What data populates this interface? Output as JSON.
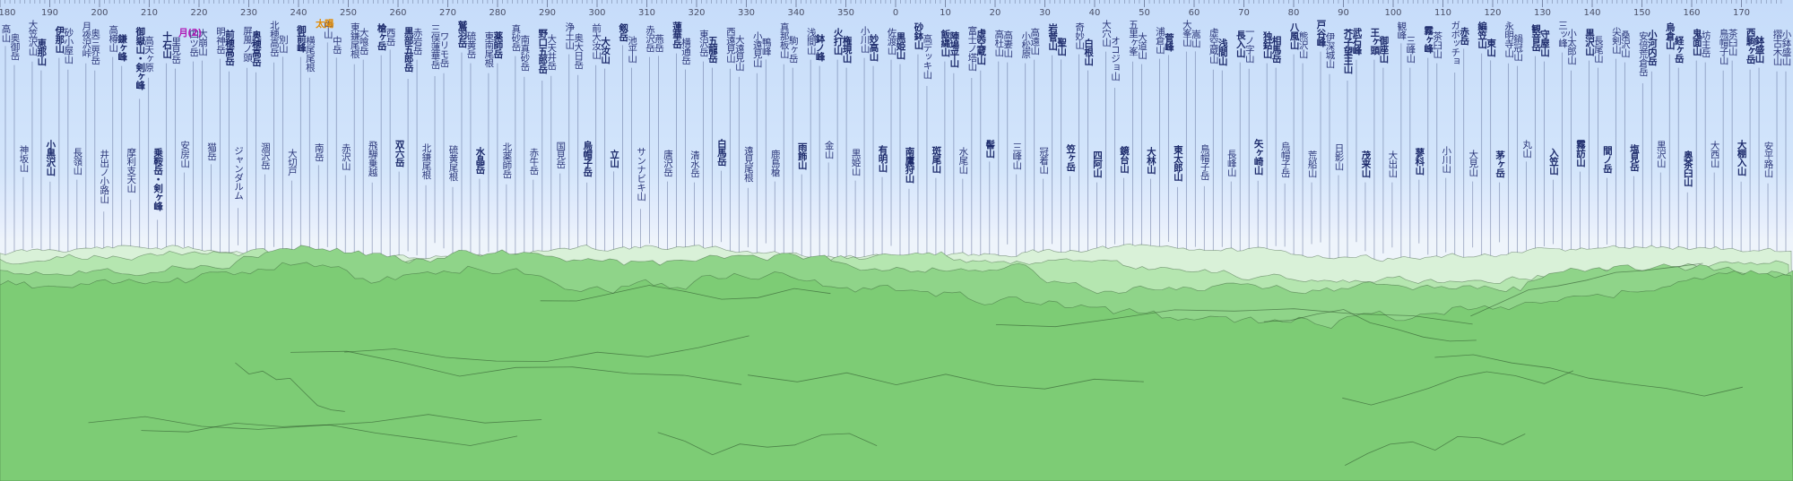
{
  "scale": {
    "start_deg": 180,
    "end_deg": 176,
    "ticks": [
      {
        "a": 180,
        "label": "180"
      },
      {
        "a": 190,
        "label": "190"
      },
      {
        "a": 200,
        "label": "200"
      },
      {
        "a": 210,
        "label": "210"
      },
      {
        "a": 220,
        "label": "220"
      },
      {
        "a": 230,
        "label": "230"
      },
      {
        "a": 240,
        "label": "240"
      },
      {
        "a": 250,
        "label": "250"
      },
      {
        "a": 260,
        "label": "260"
      },
      {
        "a": 270,
        "label": "270"
      },
      {
        "a": 280,
        "label": "280"
      },
      {
        "a": 290,
        "label": "290"
      },
      {
        "a": 300,
        "label": "300"
      },
      {
        "a": 310,
        "label": "310"
      },
      {
        "a": 320,
        "label": "320"
      },
      {
        "a": 330,
        "label": "330"
      },
      {
        "a": 340,
        "label": "340"
      },
      {
        "a": 350,
        "label": "350"
      },
      {
        "a": 360,
        "label": "0"
      },
      {
        "a": 370,
        "label": "10"
      },
      {
        "a": 380,
        "label": "20"
      },
      {
        "a": 390,
        "label": "30"
      },
      {
        "a": 400,
        "label": "40"
      },
      {
        "a": 410,
        "label": "50"
      },
      {
        "a": 420,
        "label": "60"
      },
      {
        "a": 430,
        "label": "70"
      },
      {
        "a": 440,
        "label": "80"
      },
      {
        "a": 450,
        "label": "90"
      },
      {
        "a": 460,
        "label": "100"
      },
      {
        "a": 470,
        "label": "110"
      },
      {
        "a": 480,
        "label": "120"
      },
      {
        "a": 490,
        "label": "130"
      },
      {
        "a": 500,
        "label": "140"
      },
      {
        "a": 510,
        "label": "150"
      },
      {
        "a": 520,
        "label": "160"
      },
      {
        "a": 530,
        "label": "170"
      }
    ]
  },
  "colors": {
    "sky_top": "#c6dcfa",
    "near_ridge": "#7dcc75",
    "mid_ridge": "#8fd489",
    "far_ridge": "#b5e6b0",
    "distant_ridge": "#d9f1d8",
    "label_text": "#2a3578",
    "sun": "#e28a00",
    "moon": "#b01ab5"
  },
  "markers": [
    {
      "name": "太陽",
      "type": "sun"
    },
    {
      "name": "月(2)",
      "type": "moon"
    }
  ],
  "peaks": [
    {
      "name": "高山",
      "bold": false
    },
    {
      "name": "奥御岳",
      "bold": false
    },
    {
      "name": "神坂山",
      "bold": false
    },
    {
      "name": "大笠沢山",
      "bold": false
    },
    {
      "name": "恵那山",
      "bold": true
    },
    {
      "name": "小黒沢山",
      "bold": true
    },
    {
      "name": "伊那山",
      "bold": true
    },
    {
      "name": "砂小屋山",
      "bold": false
    },
    {
      "name": "長嶺山",
      "bold": false
    },
    {
      "name": "月夜沢峠",
      "bold": false
    },
    {
      "name": "奥三界岳",
      "bold": false
    },
    {
      "name": "井出ノ小路山",
      "bold": false
    },
    {
      "name": "高樽山",
      "bold": false
    },
    {
      "name": "鎌ヶ峰",
      "bold": true
    },
    {
      "name": "摩利支天山",
      "bold": false
    },
    {
      "name": "御嶽山・剣ヶ峰",
      "bold": true
    },
    {
      "name": "高天ヶ原",
      "bold": false
    },
    {
      "name": "乗鞍岳・剣ヶ峰",
      "bold": true
    },
    {
      "name": "十石山",
      "bold": true
    },
    {
      "name": "里見岳",
      "bold": false
    },
    {
      "name": "安房山",
      "bold": false
    },
    {
      "name": "四ツ岳",
      "bold": false
    },
    {
      "name": "大崩山",
      "bold": false
    },
    {
      "name": "猫岳",
      "bold": false
    },
    {
      "name": "明神岳",
      "bold": false
    },
    {
      "name": "前穂高岳",
      "bold": true
    },
    {
      "name": "ジャンダルム",
      "bold": false
    },
    {
      "name": "屏風ノ頭",
      "bold": false
    },
    {
      "name": "奥穂高岳",
      "bold": true
    },
    {
      "name": "涸沢岳",
      "bold": false
    },
    {
      "name": "北穂高岳",
      "bold": false
    },
    {
      "name": "別山",
      "bold": false
    },
    {
      "name": "大切戸",
      "bold": false
    },
    {
      "name": "御前峰",
      "bold": true
    },
    {
      "name": "横尾尾根",
      "bold": false
    },
    {
      "name": "南岳",
      "bold": false
    },
    {
      "name": "中山",
      "bold": false
    },
    {
      "name": "中岳",
      "bold": false
    },
    {
      "name": "赤沢山",
      "bold": false
    },
    {
      "name": "東鎌尾根",
      "bold": false
    },
    {
      "name": "大喰岳",
      "bold": false
    },
    {
      "name": "飛騨乗越",
      "bold": false
    },
    {
      "name": "槍ヶ岳",
      "bold": true
    },
    {
      "name": "西岳",
      "bold": false
    },
    {
      "name": "双六岳",
      "bold": true
    },
    {
      "name": "黒部五郎岳",
      "bold": true
    },
    {
      "name": "赤岩岳",
      "bold": false
    },
    {
      "name": "北鎌尾根",
      "bold": false
    },
    {
      "name": "三俣蓮華岳",
      "bold": false
    },
    {
      "name": "ワリモ岳",
      "bold": false
    },
    {
      "name": "硫黄尾根",
      "bold": false
    },
    {
      "name": "鷲羽岳",
      "bold": true
    },
    {
      "name": "硫黄岳",
      "bold": false
    },
    {
      "name": "水晶岳",
      "bold": true
    },
    {
      "name": "東南尾根",
      "bold": false
    },
    {
      "name": "薬師岳",
      "bold": true
    },
    {
      "name": "北薬師岳",
      "bold": false
    },
    {
      "name": "真砂岳",
      "bold": false
    },
    {
      "name": "南真砂岳",
      "bold": false
    },
    {
      "name": "赤牛岳",
      "bold": false
    },
    {
      "name": "野口五郎岳",
      "bold": true
    },
    {
      "name": "大天井岳",
      "bold": false
    },
    {
      "name": "国見岳",
      "bold": false
    },
    {
      "name": "浄土山",
      "bold": false
    },
    {
      "name": "奥大日岳",
      "bold": false
    },
    {
      "name": "烏帽子岳",
      "bold": true
    },
    {
      "name": "前大汝山",
      "bold": false
    },
    {
      "name": "大汝山",
      "bold": true
    },
    {
      "name": "立山",
      "bold": true
    },
    {
      "name": "剱岳",
      "bold": true
    },
    {
      "name": "池平山",
      "bold": false
    },
    {
      "name": "サンナビキ山",
      "bold": false
    },
    {
      "name": "赤沢岳",
      "bold": false
    },
    {
      "name": "燕岳",
      "bold": false
    },
    {
      "name": "唐沢岳",
      "bold": false
    },
    {
      "name": "蓮華岳",
      "bold": true
    },
    {
      "name": "横通岳",
      "bold": false
    },
    {
      "name": "清水岳",
      "bold": false
    },
    {
      "name": "東沢岳",
      "bold": false
    },
    {
      "name": "五龍岳",
      "bold": true
    },
    {
      "name": "白馬岳",
      "bold": true
    },
    {
      "name": "西遠見山",
      "bold": false
    },
    {
      "name": "大遠見山",
      "bold": false
    },
    {
      "name": "遠見尾根",
      "bold": false
    },
    {
      "name": "小遠見山",
      "bold": false
    },
    {
      "name": "鴨峰",
      "bold": false
    },
    {
      "name": "鹿島槍",
      "bold": false
    },
    {
      "name": "真那板山",
      "bold": false
    },
    {
      "name": "駒ヶ岳",
      "bold": false
    },
    {
      "name": "雨飾山",
      "bold": true
    },
    {
      "name": "浅間山",
      "bold": false
    },
    {
      "name": "鉢ノ峰",
      "bold": true
    },
    {
      "name": "金山",
      "bold": false
    },
    {
      "name": "火打山",
      "bold": true
    },
    {
      "name": "権現山",
      "bold": true
    },
    {
      "name": "黒姫山",
      "bold": false
    },
    {
      "name": "小川山",
      "bold": false
    },
    {
      "name": "妙高山",
      "bold": true
    },
    {
      "name": "有明山",
      "bold": true
    },
    {
      "name": "佐渡山",
      "bold": false
    },
    {
      "name": "黒姫山",
      "bold": true
    },
    {
      "name": "南鷹狩山",
      "bold": true
    },
    {
      "name": "砂鉢山",
      "bold": true
    },
    {
      "name": "高デッキ山",
      "bold": false
    },
    {
      "name": "斑尾山",
      "bold": true
    },
    {
      "name": "飯縄山",
      "bold": true
    },
    {
      "name": "陣場平山",
      "bold": true
    },
    {
      "name": "水尾山",
      "bold": false
    },
    {
      "name": "富士ノ塔山",
      "bold": false
    },
    {
      "name": "虚空蔵山",
      "bold": true
    },
    {
      "name": "髻山",
      "bold": true
    },
    {
      "name": "高杜山",
      "bold": false
    },
    {
      "name": "高妻山",
      "bold": false
    },
    {
      "name": "三峰山",
      "bold": false
    },
    {
      "name": "小松原",
      "bold": false
    },
    {
      "name": "高遠山",
      "bold": false
    },
    {
      "name": "冠着山",
      "bold": false
    },
    {
      "name": "岩菅山",
      "bold": true
    },
    {
      "name": "聖山",
      "bold": true
    },
    {
      "name": "笠ヶ岳",
      "bold": true
    },
    {
      "name": "奇妙山",
      "bold": false
    },
    {
      "name": "白根山",
      "bold": true
    },
    {
      "name": "四阿山",
      "bold": true
    },
    {
      "name": "大穴山",
      "bold": false
    },
    {
      "name": "オコジョ山",
      "bold": false
    },
    {
      "name": "鏡台山",
      "bold": true
    },
    {
      "name": "五里ヶ峯",
      "bold": false
    },
    {
      "name": "大道山",
      "bold": false
    },
    {
      "name": "大林山",
      "bold": true
    },
    {
      "name": "浦倉山",
      "bold": false
    },
    {
      "name": "菅峰",
      "bold": true
    },
    {
      "name": "東太郎山",
      "bold": true
    },
    {
      "name": "大峯山",
      "bold": false
    },
    {
      "name": "嵩山",
      "bold": false
    },
    {
      "name": "鳥帽子岳",
      "bold": false
    },
    {
      "name": "虚空蔵山",
      "bold": false
    },
    {
      "name": "浅間山",
      "bold": true
    },
    {
      "name": "長峰山",
      "bold": false
    },
    {
      "name": "長入山",
      "bold": true
    },
    {
      "name": "一ノ字山",
      "bold": false
    },
    {
      "name": "矢ヶ崎山",
      "bold": true
    },
    {
      "name": "独鈷山",
      "bold": true
    },
    {
      "name": "相馬岳",
      "bold": true
    },
    {
      "name": "烏帽子岳",
      "bold": false
    },
    {
      "name": "八風山",
      "bold": true
    },
    {
      "name": "熊沢山",
      "bold": false
    },
    {
      "name": "荒船山",
      "bold": false
    },
    {
      "name": "戸谷峰",
      "bold": true
    },
    {
      "name": "伊深城山",
      "bold": false
    },
    {
      "name": "日影山",
      "bold": false
    },
    {
      "name": "芥子望主山",
      "bold": true
    },
    {
      "name": "武石峰",
      "bold": true
    },
    {
      "name": "茂来山",
      "bold": true
    },
    {
      "name": "王ヶ頭",
      "bold": true
    },
    {
      "name": "御座山",
      "bold": true
    },
    {
      "name": "大出山",
      "bold": false
    },
    {
      "name": "観峰",
      "bold": false
    },
    {
      "name": "三峰山",
      "bold": false
    },
    {
      "name": "蓼科山",
      "bold": true
    },
    {
      "name": "霧ヶ峰",
      "bold": true
    },
    {
      "name": "茶臼山",
      "bold": false
    },
    {
      "name": "小川山",
      "bold": false
    },
    {
      "name": "ガボッチョ",
      "bold": false
    },
    {
      "name": "赤岳",
      "bold": true
    },
    {
      "name": "大見山",
      "bold": false
    },
    {
      "name": "編笠山",
      "bold": true
    },
    {
      "name": "東山",
      "bold": true
    },
    {
      "name": "茅ヶ岳",
      "bold": true
    },
    {
      "name": "永明寺山",
      "bold": false
    },
    {
      "name": "鍋冠山",
      "bold": false
    },
    {
      "name": "丸山",
      "bold": false
    },
    {
      "name": "観音岳",
      "bold": true
    },
    {
      "name": "守屋山",
      "bold": true
    },
    {
      "name": "入笠山",
      "bold": true
    },
    {
      "name": "三ッ峰",
      "bold": false
    },
    {
      "name": "小太郎山",
      "bold": false
    },
    {
      "name": "霧訪山",
      "bold": true
    },
    {
      "name": "黒沢山",
      "bold": true
    },
    {
      "name": "長尾山",
      "bold": false
    },
    {
      "name": "間ノ岳",
      "bold": true
    },
    {
      "name": "尖剣山",
      "bold": false
    },
    {
      "name": "桑沢山",
      "bold": false
    },
    {
      "name": "塩見岳",
      "bold": true
    },
    {
      "name": "安倍荒倉岳",
      "bold": false
    },
    {
      "name": "小河内岳",
      "bold": true
    },
    {
      "name": "黒沢山",
      "bold": false
    },
    {
      "name": "烏倉山",
      "bold": true
    },
    {
      "name": "経ヶ岳",
      "bold": true
    },
    {
      "name": "奥茶臼山",
      "bold": true
    },
    {
      "name": "鬼面山",
      "bold": true
    },
    {
      "name": "坊主岳",
      "bold": false
    },
    {
      "name": "大西山",
      "bold": false
    },
    {
      "name": "鳥帽子山",
      "bold": false
    },
    {
      "name": "茶臼山",
      "bold": false
    },
    {
      "name": "大棚入山",
      "bold": true
    },
    {
      "name": "西駒ヶ岳",
      "bold": true
    },
    {
      "name": "鉢盛山",
      "bold": true
    },
    {
      "name": "安平路山",
      "bold": false
    },
    {
      "name": "摺古木山",
      "bold": false
    },
    {
      "name": "小鉢盛山",
      "bold": false
    }
  ]
}
